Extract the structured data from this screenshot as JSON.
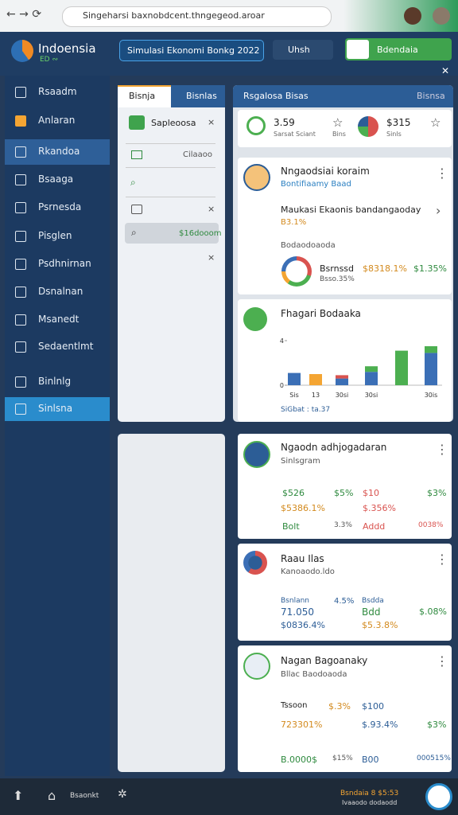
{
  "browser": {
    "url": "Singeharsi baxnobdcent.thngegeod.aroar"
  },
  "header": {
    "logo_title": "Indoensia",
    "logo_sub": "ED ∾",
    "search": "Simulasi Ekonomi Bonkg 2022",
    "button": "Uhsh",
    "action": "Bdendaia"
  },
  "sidebar": {
    "items": [
      "Rsaadm",
      "Anlaran",
      "Rkandoa",
      "Bsaaga",
      "Psrnesda",
      "Pisglen",
      "Psdhnirnan",
      "Dsnalnan",
      "Msanedt",
      "Sedaentlmt",
      "Binlnlg",
      "Sinlsna"
    ]
  },
  "left_panel": {
    "tabs": [
      "Bisnja",
      "Bisnlas"
    ],
    "items": [
      "Sapleoosa",
      "Cilaaoo",
      "$16dooom"
    ]
  },
  "right_panel": {
    "tabs": [
      "Rsgalosa Bisas",
      "Bisnsa"
    ]
  },
  "stats": [
    {
      "value": "3.59",
      "label": "Sarsat Sciant",
      "extra": "Bins"
    },
    {
      "value": "$315",
      "label": "Sinls"
    }
  ],
  "cards": [
    {
      "title": "Nngaodsiai koraim",
      "subtitle": "Bontifiaamy Baad",
      "line": "Maukasi Ekaonis bandangaoday",
      "note": "B3.1%",
      "section": "Bodaodoaoda",
      "metrics": [
        "Bsrnssd",
        "$8318.1%",
        "$1.35%",
        "Bsso.35%"
      ]
    },
    {
      "footer": "SiGbat : ta.37"
    },
    {
      "title": "Ngaodn adhjogadaran",
      "subtitle": "Sinlsgram",
      "metrics": [
        "$526",
        "$5%",
        "$10",
        "$3%",
        "$5386.1%",
        "$.356%",
        "Bolt",
        "3.3%",
        "Addd",
        "0038%"
      ]
    },
    {
      "title": "Raau Ilas",
      "subtitle": "Kanoaodo.ldo",
      "metrics": [
        "Bsnlann",
        "4.5%",
        "Bsdda",
        "71.050",
        "Bdd",
        "$.08%",
        "$0836.4%",
        "$5.3.8%"
      ]
    },
    {
      "title": "Nagan Bagoanaky",
      "subtitle": "Bllac Baodoaoda",
      "metrics": [
        "Tssoon",
        "$.3%",
        "$100",
        "723301%",
        "$.93.4%",
        "$3%",
        "B.0000$",
        "$15%",
        "B00",
        "000515%"
      ]
    }
  ],
  "footer": {
    "label": "Bsaonkt",
    "promo": "Bsndaia 8 $5:53",
    "promo_sub": "Ivaaodo dodaodd"
  },
  "chart_data": {
    "type": "bar",
    "stacked": true,
    "title": "Fhagari Bodaaka",
    "categories": [
      "Sis",
      "13",
      "30si",
      "30si",
      null,
      "30is"
    ],
    "series": [
      {
        "color": "#3b6fb6",
        "values": [
          1.1,
          0,
          0.6,
          1.2,
          0,
          2.9
        ]
      },
      {
        "color": "#f4a533",
        "values": [
          0,
          1.0,
          0,
          0,
          0,
          0
        ]
      },
      {
        "color": "#d9534f",
        "values": [
          0,
          0,
          0.3,
          0,
          0,
          0
        ]
      },
      {
        "color": "#4caf50",
        "values": [
          0,
          0,
          0,
          0.5,
          3.1,
          0.6
        ]
      }
    ],
    "ylim": [
      0,
      4.5
    ],
    "yticks": [
      0,
      4
    ]
  }
}
